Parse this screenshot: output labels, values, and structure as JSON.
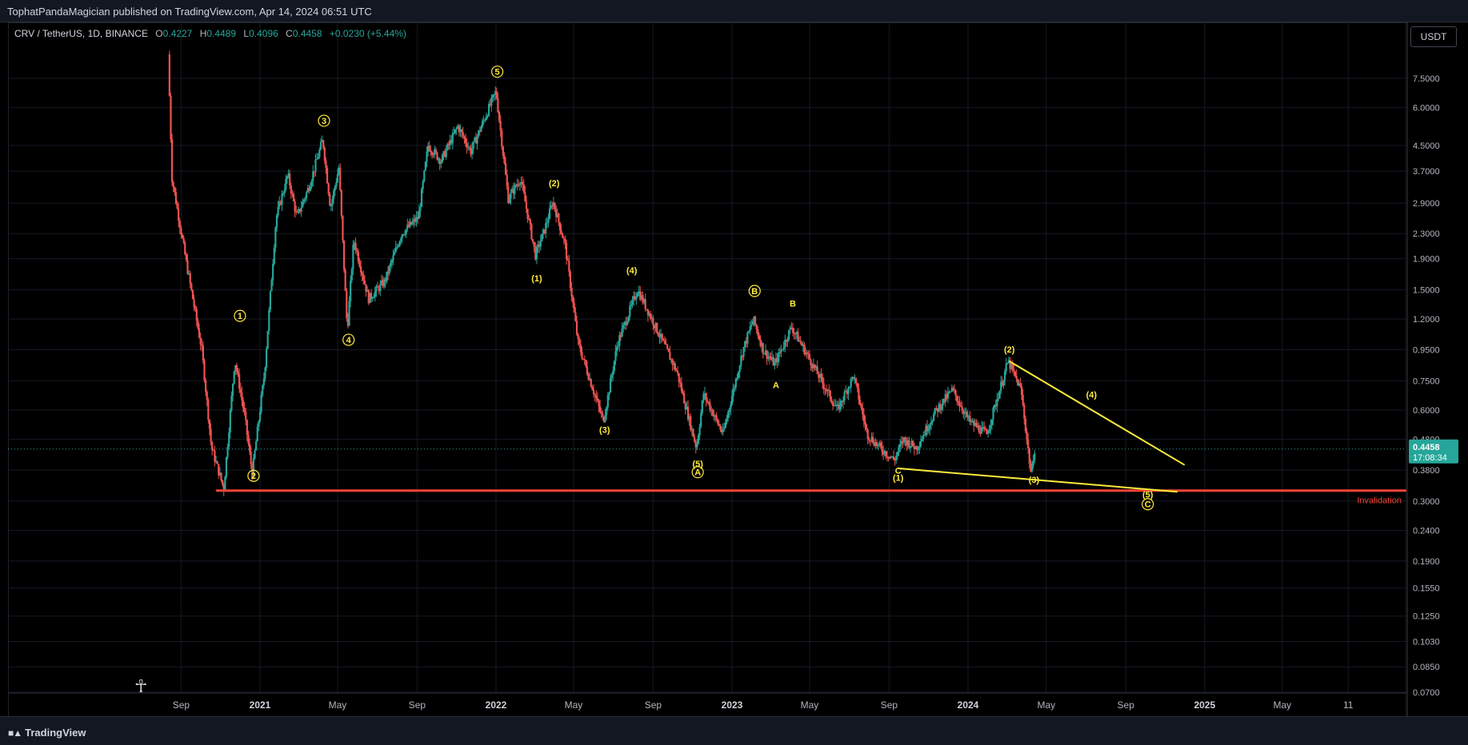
{
  "header": {
    "published_by": "TophatPandaMagician published on TradingView.com, Apr 14, 2024 06:51 UTC"
  },
  "legend": {
    "symbol": "CRV / TetherUS, 1D, BINANCE",
    "open_label": "O",
    "open": "0.4227",
    "high_label": "H",
    "high": "0.4489",
    "low_label": "L",
    "low": "0.4096",
    "close_label": "C",
    "close": "0.4458",
    "change": "+0.0230 (+5.44%)"
  },
  "currency_button": {
    "label": "USDT"
  },
  "footer": {
    "brand": "TradingView"
  },
  "colors": {
    "up": "#26a69a",
    "down": "#ef5350",
    "wave": "#ffeb3b",
    "support": "#f44336",
    "grid": "#161a25"
  },
  "chart_data": {
    "type": "candlestick",
    "symbol": "CRV/USDT",
    "interval": "1D",
    "scale": "log",
    "y_ticks": [
      "7.5000",
      "6.0000",
      "4.5000",
      "3.7000",
      "2.9000",
      "2.3000",
      "1.9000",
      "1.5000",
      "1.2000",
      "0.9500",
      "0.7500",
      "0.6000",
      "0.4800",
      "0.3800",
      "0.3000",
      "0.2400",
      "0.1900",
      "0.1550",
      "0.1250",
      "0.1030",
      "0.0850",
      "0.0700"
    ],
    "x_ticks": [
      {
        "label": "Sep",
        "date": "2020-09-01",
        "year": false
      },
      {
        "label": "2021",
        "date": "2021-01-01",
        "year": true
      },
      {
        "label": "May",
        "date": "2021-05-01",
        "year": false
      },
      {
        "label": "Sep",
        "date": "2021-09-01",
        "year": false
      },
      {
        "label": "2022",
        "date": "2022-01-01",
        "year": true
      },
      {
        "label": "May",
        "date": "2022-05-01",
        "year": false
      },
      {
        "label": "Sep",
        "date": "2022-09-01",
        "year": false
      },
      {
        "label": "2023",
        "date": "2023-01-01",
        "year": true
      },
      {
        "label": "May",
        "date": "2023-05-01",
        "year": false
      },
      {
        "label": "Sep",
        "date": "2023-09-01",
        "year": false
      },
      {
        "label": "2024",
        "date": "2024-01-01",
        "year": true
      },
      {
        "label": "May",
        "date": "2024-05-01",
        "year": false
      },
      {
        "label": "Sep",
        "date": "2024-09-01",
        "year": false
      },
      {
        "label": "2025",
        "date": "2025-01-01",
        "year": true
      },
      {
        "label": "May",
        "date": "2025-05-01",
        "year": false
      },
      {
        "label": "11",
        "date": "2025-08-11",
        "year": false
      }
    ],
    "price_path": [
      [
        "2020-08-14",
        9.0
      ],
      [
        "2020-08-20",
        3.5
      ],
      [
        "2020-09-10",
        1.9
      ],
      [
        "2020-10-05",
        0.95
      ],
      [
        "2020-10-20",
        0.45
      ],
      [
        "2020-11-08",
        0.33
      ],
      [
        "2020-11-25",
        0.88
      ],
      [
        "2020-12-10",
        0.58
      ],
      [
        "2020-12-22",
        0.37
      ],
      [
        "2021-01-10",
        0.8
      ],
      [
        "2021-01-28",
        2.6
      ],
      [
        "2021-02-15",
        3.6
      ],
      [
        "2021-03-01",
        2.6
      ],
      [
        "2021-03-20",
        3.3
      ],
      [
        "2021-04-10",
        4.7
      ],
      [
        "2021-04-22",
        2.8
      ],
      [
        "2021-05-05",
        3.8
      ],
      [
        "2021-05-18",
        1.1
      ],
      [
        "2021-05-28",
        2.2
      ],
      [
        "2021-06-20",
        1.4
      ],
      [
        "2021-07-15",
        1.6
      ],
      [
        "2021-08-10",
        2.3
      ],
      [
        "2021-09-05",
        2.6
      ],
      [
        "2021-09-20",
        4.5
      ],
      [
        "2021-10-10",
        4.0
      ],
      [
        "2021-11-05",
        5.2
      ],
      [
        "2021-11-25",
        4.3
      ],
      [
        "2022-01-03",
        6.8
      ],
      [
        "2022-01-22",
        3.0
      ],
      [
        "2022-02-10",
        3.5
      ],
      [
        "2022-03-05",
        1.95
      ],
      [
        "2022-03-20",
        2.4
      ],
      [
        "2022-04-01",
        2.95
      ],
      [
        "2022-04-20",
        2.1
      ],
      [
        "2022-05-10",
        1.0
      ],
      [
        "2022-06-18",
        0.55
      ],
      [
        "2022-07-10",
        1.0
      ],
      [
        "2022-08-10",
        1.5
      ],
      [
        "2022-09-01",
        1.2
      ],
      [
        "2022-10-10",
        0.8
      ],
      [
        "2022-11-09",
        0.45
      ],
      [
        "2022-11-20",
        0.68
      ],
      [
        "2022-12-20",
        0.5
      ],
      [
        "2023-01-20",
        0.95
      ],
      [
        "2023-02-05",
        1.2
      ],
      [
        "2023-02-20",
        0.95
      ],
      [
        "2023-03-10",
        0.85
      ],
      [
        "2023-04-05",
        1.13
      ],
      [
        "2023-05-01",
        0.9
      ],
      [
        "2023-06-15",
        0.6
      ],
      [
        "2023-07-10",
        0.78
      ],
      [
        "2023-07-31",
        0.5
      ],
      [
        "2023-08-20",
        0.45
      ],
      [
        "2023-09-11",
        0.41
      ],
      [
        "2023-09-25",
        0.48
      ],
      [
        "2023-10-15",
        0.45
      ],
      [
        "2023-11-15",
        0.6
      ],
      [
        "2023-12-10",
        0.7
      ],
      [
        "2024-01-05",
        0.55
      ],
      [
        "2024-02-01",
        0.5
      ],
      [
        "2024-03-05",
        0.87
      ],
      [
        "2024-03-25",
        0.7
      ],
      [
        "2024-04-10",
        0.36
      ],
      [
        "2024-04-14",
        0.4458
      ]
    ],
    "last_price": "0.4458",
    "countdown": "17:08:34",
    "support_level": 0.325,
    "support_label": "Invalidation",
    "wave_labels": [
      {
        "text": "1",
        "date": "2020-12-01",
        "price": 1.2,
        "circled": true
      },
      {
        "text": "2",
        "date": "2020-12-22",
        "price": 0.355,
        "circled": true
      },
      {
        "text": "3",
        "date": "2021-04-10",
        "price": 5.3,
        "circled": true
      },
      {
        "text": "4",
        "date": "2021-05-18",
        "price": 1.0,
        "circled": true
      },
      {
        "text": "5",
        "date": "2022-01-03",
        "price": 7.7,
        "circled": true
      },
      {
        "text": "(1)",
        "date": "2022-03-05",
        "price": 1.6,
        "circled": false
      },
      {
        "text": "(2)",
        "date": "2022-04-01",
        "price": 3.3,
        "circled": false
      },
      {
        "text": "(3)",
        "date": "2022-06-18",
        "price": 0.505,
        "circled": false
      },
      {
        "text": "(4)",
        "date": "2022-07-30",
        "price": 1.7,
        "circled": false
      },
      {
        "text": "(5)",
        "date": "2022-11-09",
        "price": 0.39,
        "circled": false
      },
      {
        "text": "A",
        "date": "2022-11-09",
        "price": 0.365,
        "circled": true
      },
      {
        "text": "B",
        "date": "2023-02-05",
        "price": 1.45,
        "circled": true
      },
      {
        "text": "A",
        "date": "2023-03-10",
        "price": 0.71,
        "circled": false
      },
      {
        "text": "B",
        "date": "2023-04-05",
        "price": 1.32,
        "circled": false
      },
      {
        "text": "C",
        "date": "2023-09-15",
        "price": 0.37,
        "circled": false
      },
      {
        "text": "(1)",
        "date": "2023-09-15",
        "price": 0.35,
        "circled": false
      },
      {
        "text": "(2)",
        "date": "2024-03-05",
        "price": 0.93,
        "circled": false
      },
      {
        "text": "(3)",
        "date": "2024-04-12",
        "price": 0.345,
        "circled": false
      },
      {
        "text": "(4)",
        "date": "2024-07-10",
        "price": 0.66,
        "circled": false
      },
      {
        "text": "(5)",
        "date": "2024-10-05",
        "price": 0.308,
        "circled": false
      },
      {
        "text": "C",
        "date": "2024-10-05",
        "price": 0.286,
        "circled": true
      }
    ],
    "trendlines": [
      {
        "from": [
          "2024-03-05",
          0.87
        ],
        "to": [
          "2024-12-01",
          0.395
        ]
      },
      {
        "from": [
          "2023-09-15",
          0.385
        ],
        "to": [
          "2024-11-20",
          0.322
        ]
      }
    ]
  }
}
